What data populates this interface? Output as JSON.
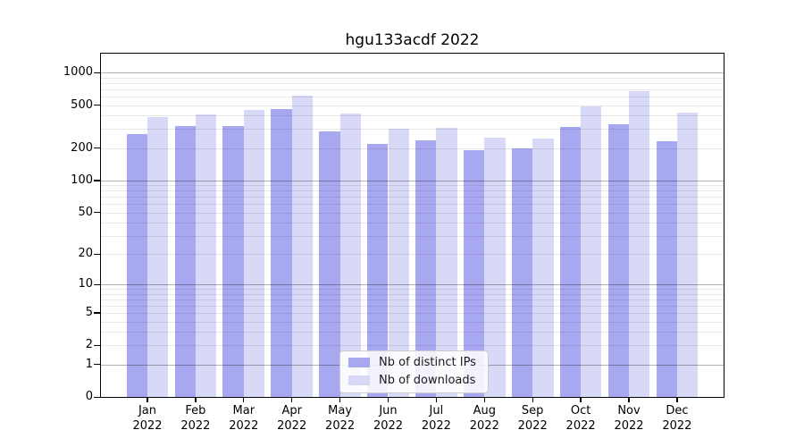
{
  "chart_data": {
    "type": "bar",
    "title": "hgu133acdf 2022",
    "categories": [
      "Jan",
      "Feb",
      "Mar",
      "Apr",
      "May",
      "Jun",
      "Jul",
      "Aug",
      "Sep",
      "Oct",
      "Nov",
      "Dec"
    ],
    "x_tick_second_line": "2022",
    "series": [
      {
        "name": "Nb of distinct IPs",
        "color": "#a8a8f0",
        "values": [
          270,
          318,
          319,
          460,
          285,
          218,
          235,
          192,
          198,
          315,
          330,
          230
        ]
      },
      {
        "name": "Nb of downloads",
        "color": "#d8d8f7",
        "values": [
          391,
          414,
          450,
          611,
          421,
          300,
          309,
          252,
          247,
          485,
          680,
          427
        ]
      }
    ],
    "yscale": "log1p",
    "yticks": [
      0,
      1,
      2,
      5,
      10,
      20,
      50,
      100,
      200,
      500,
      1000
    ],
    "minor_gridlines": [
      2,
      3,
      4,
      5,
      6,
      7,
      8,
      9,
      20,
      30,
      40,
      50,
      60,
      70,
      80,
      90,
      200,
      300,
      400,
      500,
      600,
      700,
      800,
      900
    ],
    "major_gridlines": [
      1,
      10,
      100,
      1000
    ],
    "ylim": [
      0,
      1500
    ],
    "grid": true,
    "legend_position": "lower center"
  }
}
